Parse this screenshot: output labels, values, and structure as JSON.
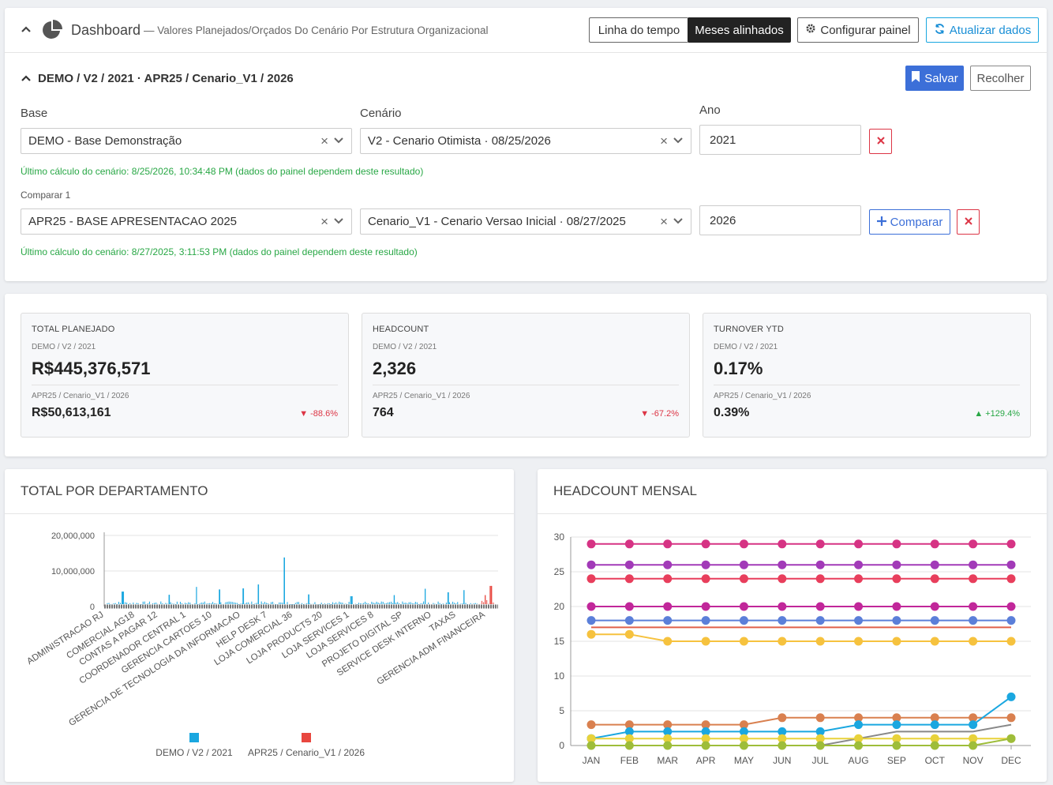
{
  "header": {
    "title": "Dashboard",
    "subtitle": "— Valores Planejados/Orçados Do Cenário Por Estrutura Organizacional",
    "view_toggle": [
      "Linha do tempo",
      "Meses alinhados"
    ],
    "active_view": "Meses alinhados",
    "configure_label": "Configurar painel",
    "refresh_label": "Atualizar dados"
  },
  "scenario": {
    "breadcrumb": "DEMO / V2 / 2021 · APR25 / Cenario_V1 / 2026",
    "save_label": "Salvar",
    "collapse_label": "Recolher",
    "base_label": "Base",
    "cenario_label": "Cenário",
    "ano_label": "Ano",
    "base_value": "DEMO - Base Demonstração",
    "cenario_value": "V2 - Cenario Otimista · 08/25/2026",
    "ano_value": "2021",
    "base_note": "Último cálculo do cenário: 8/25/2026, 10:34:48 PM (dados do painel dependem deste resultado)",
    "compare_label": "Comparar 1",
    "compare_base_value": "APR25 - BASE APRESENTACAO 2025",
    "compare_cenario_value": "Cenario_V1 - Cenario Versao Inicial · 08/27/2025",
    "compare_ano_value": "2026",
    "compare_button": "Comparar",
    "compare_note": "Último cálculo do cenário: 8/27/2025, 3:11:53 PM (dados do painel dependem deste resultado)"
  },
  "kpis": [
    {
      "title": "TOTAL PLANEJADO",
      "sub1": "DEMO / V2 / 2021",
      "value1": "R$445,376,571",
      "sub2": "APR25 / Cenario_V1 / 2026",
      "value2": "R$50,613,161",
      "delta": "▼ -88.6%",
      "delta_dir": "down"
    },
    {
      "title": "HEADCOUNT",
      "sub1": "DEMO / V2 / 2021",
      "value1": "2,326",
      "sub2": "APR25 / Cenario_V1 / 2026",
      "value2": "764",
      "delta": "▼ -67.2%",
      "delta_dir": "down"
    },
    {
      "title": "TURNOVER YTD",
      "sub1": "DEMO / V2 / 2021",
      "value1": "0.17%",
      "sub2": "APR25 / Cenario_V1 / 2026",
      "value2": "0.39%",
      "delta": "▲ +129.4%",
      "delta_dir": "up"
    }
  ],
  "colors": {
    "series_demo": "#1aa7e0",
    "series_apr25": "#e8473f",
    "primary": "#3c6fd8",
    "danger": "#dc3545",
    "success": "#28a745"
  },
  "chart_data": [
    {
      "type": "bar",
      "title": "TOTAL POR DEPARTAMENTO",
      "ylim": [
        0,
        20000000
      ],
      "yticks": [
        "20,000,000",
        "10,000,000",
        "0"
      ],
      "category_labels": [
        "ADMINISTRACAO RJ",
        "COMERCIAL AG18",
        "CONTAS A PAGAR 12",
        "COORDENADOR CENTRAL 1",
        "GERENCIA CARTOES 10",
        "GERENCIA DE TECNOLOGIA DA INFORMACAO",
        "HELP DESK 7",
        "LOJA COMERCIAL 36",
        "LOJA PRODUCTS 20",
        "LOJA SERVICES 1",
        "LOJA SERVICES 8",
        "PROJETO DIGITAL SP",
        "SERVICE DESK INTERNO",
        "TAXAS",
        "GERENCIA ADM FINANCEIRA"
      ],
      "series": [
        {
          "name": "DEMO / V2 / 2021",
          "peaks": [
            {
              "pos": 0.04,
              "value": 4200000
            },
            {
              "pos": 0.16,
              "value": 3300000
            },
            {
              "pos": 0.23,
              "value": 5500000
            },
            {
              "pos": 0.29,
              "value": 4800000
            },
            {
              "pos": 0.35,
              "value": 5100000
            },
            {
              "pos": 0.39,
              "value": 6200000
            },
            {
              "pos": 0.457,
              "value": 13800000
            },
            {
              "pos": 0.52,
              "value": 3400000
            },
            {
              "pos": 0.63,
              "value": 2900000
            },
            {
              "pos": 0.74,
              "value": 3200000
            },
            {
              "pos": 0.82,
              "value": 5000000
            },
            {
              "pos": 0.88,
              "value": 4000000
            },
            {
              "pos": 0.92,
              "value": 4600000
            }
          ],
          "baseline": 1200000
        },
        {
          "name": "APR25 / Cenario_V1 / 2026",
          "peaks": [
            {
              "pos": 0.975,
              "value": 3200000
            },
            {
              "pos": 0.99,
              "value": 5800000
            }
          ],
          "baseline": 1600000
        }
      ]
    },
    {
      "type": "line",
      "title": "HEADCOUNT MENSAL",
      "categories": [
        "JAN",
        "FEB",
        "MAR",
        "APR",
        "MAY",
        "JUN",
        "JUL",
        "AUG",
        "SEP",
        "OCT",
        "NOV",
        "DEC"
      ],
      "ylim": [
        0,
        30
      ],
      "yticks": [
        30,
        25,
        20,
        15,
        10,
        5,
        0
      ],
      "series": [
        {
          "color": "#d63384",
          "values": [
            29,
            29,
            29,
            29,
            29,
            29,
            29,
            29,
            29,
            29,
            29,
            29
          ],
          "markers": true
        },
        {
          "color": "#a23ab8",
          "values": [
            26,
            26,
            26,
            26,
            26,
            26,
            26,
            26,
            26,
            26,
            26,
            26
          ],
          "markers": true
        },
        {
          "color": "#e83e5c",
          "values": [
            24,
            24,
            24,
            24,
            24,
            24,
            24,
            24,
            24,
            24,
            24,
            24
          ],
          "markers": true
        },
        {
          "color": "#c1279a",
          "values": [
            20,
            20,
            20,
            20,
            20,
            20,
            20,
            20,
            20,
            20,
            20,
            20
          ],
          "markers": true
        },
        {
          "color": "#5b7fd9",
          "values": [
            18,
            18,
            18,
            18,
            18,
            18,
            18,
            18,
            18,
            18,
            18,
            18
          ],
          "markers": true
        },
        {
          "color": "#e0604a",
          "values": [
            17,
            17,
            17,
            17,
            17,
            17,
            17,
            17,
            17,
            17,
            17,
            17
          ],
          "markers": false
        },
        {
          "color": "#f6c23e",
          "values": [
            16,
            16,
            15,
            15,
            15,
            15,
            15,
            15,
            15,
            15,
            15,
            15
          ],
          "markers": true
        },
        {
          "color": "#d9804f",
          "values": [
            3,
            3,
            3,
            3,
            3,
            4,
            4,
            4,
            4,
            4,
            4,
            4
          ],
          "markers": true
        },
        {
          "color": "#1aa7e0",
          "values": [
            1,
            2,
            2,
            2,
            2,
            2,
            2,
            3,
            3,
            3,
            3,
            7
          ],
          "markers": true
        },
        {
          "color": "#888888",
          "values": [
            0,
            0,
            0,
            0,
            0,
            0,
            0,
            1,
            2,
            2,
            2,
            3
          ],
          "markers": false
        },
        {
          "color": "#e8d23a",
          "values": [
            1,
            1,
            1,
            1,
            1,
            1,
            1,
            1,
            1,
            1,
            1,
            1
          ],
          "markers": true
        },
        {
          "color": "#9ebd3a",
          "values": [
            0,
            0,
            0,
            0,
            0,
            0,
            0,
            0,
            0,
            0,
            0,
            1
          ],
          "markers": true
        }
      ]
    }
  ]
}
